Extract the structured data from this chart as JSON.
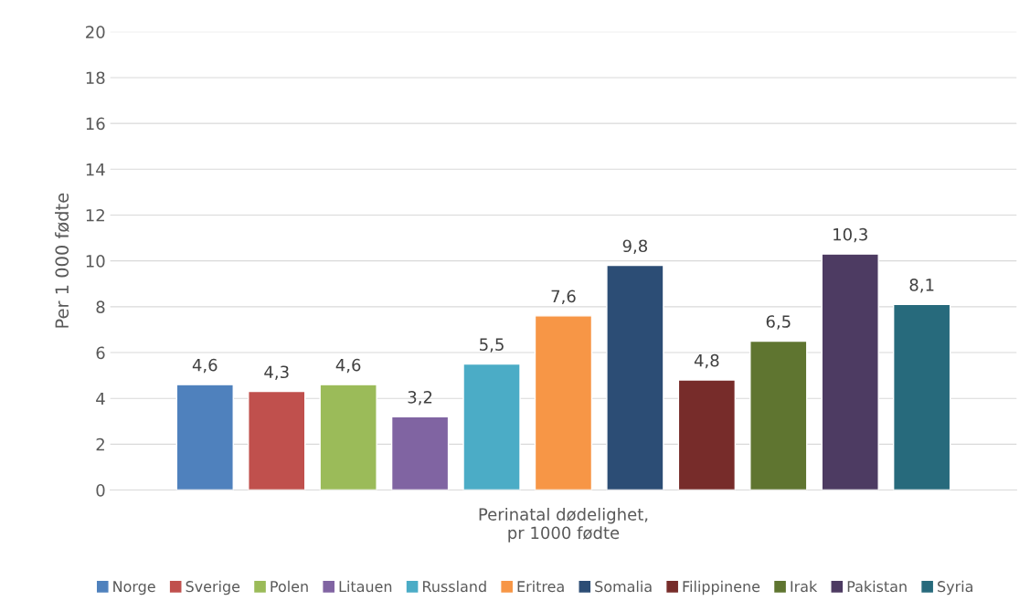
{
  "chart_data": {
    "type": "bar",
    "ylabel": "Per 1 000 fødte",
    "categories": [
      "Perinatal dødelighet,\npr 1000 fødte"
    ],
    "series": [
      {
        "name": "Norge",
        "color": "#4f81bd",
        "values": [
          4.6
        ],
        "value_labels": [
          "4,6"
        ]
      },
      {
        "name": "Sverige",
        "color": "#c0504d",
        "values": [
          4.3
        ],
        "value_labels": [
          "4,3"
        ]
      },
      {
        "name": "Polen",
        "color": "#9bbb59",
        "values": [
          4.6
        ],
        "value_labels": [
          "4,6"
        ]
      },
      {
        "name": "Litauen",
        "color": "#8064a2",
        "values": [
          3.2
        ],
        "value_labels": [
          "3,2"
        ]
      },
      {
        "name": "Russland",
        "color": "#4bacc6",
        "values": [
          5.5
        ],
        "value_labels": [
          "5,5"
        ]
      },
      {
        "name": "Eritrea",
        "color": "#f79646",
        "values": [
          7.6
        ],
        "value_labels": [
          "7,6"
        ]
      },
      {
        "name": "Somalia",
        "color": "#2c4d75",
        "values": [
          9.8
        ],
        "value_labels": [
          "9,8"
        ]
      },
      {
        "name": "Filippinene",
        "color": "#772c2a",
        "values": [
          4.8
        ],
        "value_labels": [
          "4,8"
        ]
      },
      {
        "name": "Irak",
        "color": "#5f7530",
        "values": [
          6.5
        ],
        "value_labels": [
          "6,5"
        ]
      },
      {
        "name": "Pakistan",
        "color": "#4d3b62",
        "values": [
          10.3
        ],
        "value_labels": [
          "10,3"
        ]
      },
      {
        "name": "Syria",
        "color": "#276a7c",
        "values": [
          8.1
        ],
        "value_labels": [
          "8,1"
        ]
      }
    ],
    "ylim": [
      0,
      20
    ],
    "yticks": [
      0,
      2,
      4,
      6,
      8,
      10,
      12,
      14,
      16,
      18,
      20
    ],
    "grid": "y",
    "legend": "bottom"
  }
}
